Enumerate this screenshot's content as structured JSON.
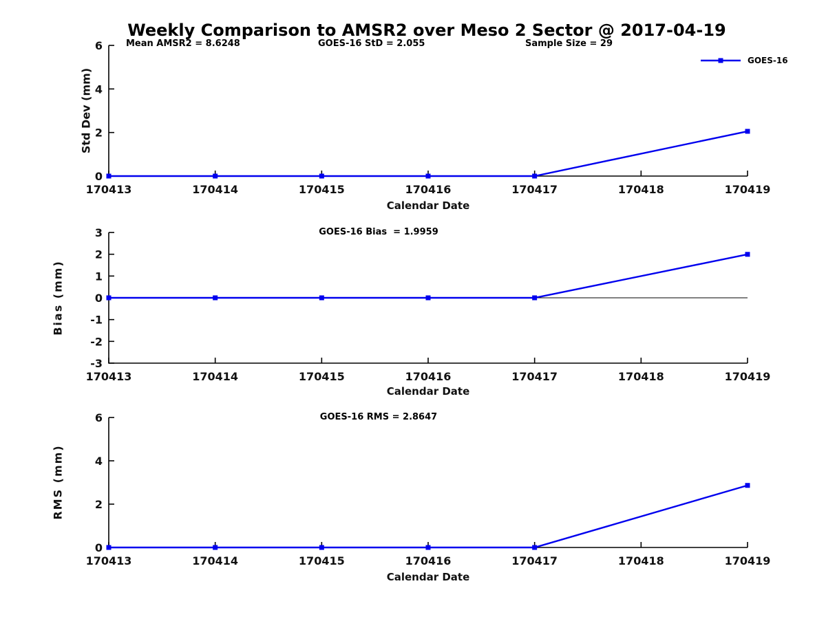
{
  "title": "Weekly Comparison to AMSR2 over Meso 2 Sector @ 2017-04-19",
  "colors": {
    "series": "#0000EE",
    "axis": "#000000"
  },
  "legend": {
    "label": "GOES-16",
    "position": "top-right"
  },
  "chart_data": [
    {
      "type": "line",
      "name": "std-dev",
      "ylabel": "Std Dev (mm)",
      "xlabel": "Calendar Date",
      "categories": [
        "170413",
        "170414",
        "170415",
        "170416",
        "170417",
        "170418",
        "170419"
      ],
      "ylim": [
        0,
        6
      ],
      "yticks": [
        0,
        2,
        4,
        6
      ],
      "grid": false,
      "zero_line": false,
      "annotations": [
        "Mean AMSR2 = 8.6248",
        "GOES-16 StD = 2.055",
        "Sample Size = 29"
      ],
      "stats": {
        "mean_amsr2": 8.6248,
        "goes16_std": 2.055,
        "sample_size": 29
      },
      "series": [
        {
          "name": "GOES-16",
          "marker": "square",
          "x_index": [
            0,
            1,
            2,
            3,
            4,
            6
          ],
          "x": [
            "170413",
            "170414",
            "170415",
            "170416",
            "170417",
            "170419"
          ],
          "y": [
            0,
            0,
            0,
            0,
            0,
            2.055
          ]
        }
      ]
    },
    {
      "type": "line",
      "name": "bias",
      "ylabel": "Bias (mm)",
      "xlabel": "Calendar Date",
      "categories": [
        "170413",
        "170414",
        "170415",
        "170416",
        "170417",
        "170418",
        "170419"
      ],
      "ylim": [
        -3,
        3
      ],
      "yticks": [
        -3,
        -2,
        -1,
        0,
        1,
        2,
        3
      ],
      "grid": false,
      "zero_line": true,
      "annotations": [
        "GOES-16 Bias  = 1.9959"
      ],
      "stats": {
        "goes16_bias": 1.9959
      },
      "series": [
        {
          "name": "GOES-16",
          "marker": "square",
          "x_index": [
            0,
            1,
            2,
            3,
            4,
            6
          ],
          "x": [
            "170413",
            "170414",
            "170415",
            "170416",
            "170417",
            "170419"
          ],
          "y": [
            0,
            0,
            0,
            0,
            0,
            1.9959
          ]
        }
      ]
    },
    {
      "type": "line",
      "name": "rms",
      "ylabel": "RMS (mm)",
      "xlabel": "Calendar Date",
      "categories": [
        "170413",
        "170414",
        "170415",
        "170416",
        "170417",
        "170418",
        "170419"
      ],
      "ylim": [
        0,
        6
      ],
      "yticks": [
        0,
        2,
        4,
        6
      ],
      "grid": false,
      "zero_line": false,
      "annotations": [
        "GOES-16 RMS = 2.8647"
      ],
      "stats": {
        "goes16_rms": 2.8647
      },
      "series": [
        {
          "name": "GOES-16",
          "marker": "square",
          "x_index": [
            0,
            1,
            2,
            3,
            4,
            6
          ],
          "x": [
            "170413",
            "170414",
            "170415",
            "170416",
            "170417",
            "170419"
          ],
          "y": [
            0,
            0,
            0,
            0,
            0,
            2.8647
          ]
        }
      ]
    }
  ]
}
